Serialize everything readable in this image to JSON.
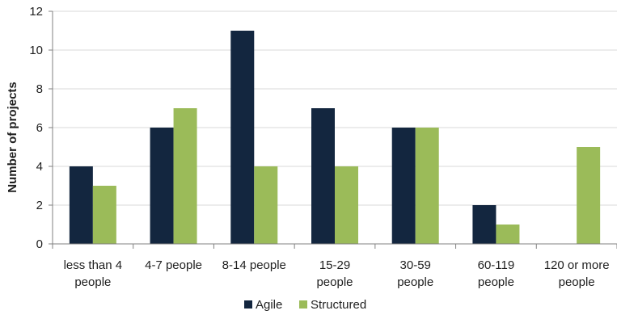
{
  "chart_data": {
    "type": "bar",
    "categories": [
      [
        "less than 4",
        "people"
      ],
      [
        "4-7 people"
      ],
      [
        "8-14 people"
      ],
      [
        "15-29",
        "people"
      ],
      [
        "30-59",
        "people"
      ],
      [
        "60-119",
        "people"
      ],
      [
        "120 or more",
        "people"
      ]
    ],
    "series": [
      {
        "name": "Agile",
        "color": "#13263f",
        "values": [
          4,
          6,
          11,
          7,
          6,
          2,
          0
        ]
      },
      {
        "name": "Structured",
        "color": "#9bbb59",
        "values": [
          3,
          7,
          4,
          4,
          6,
          1,
          5
        ]
      }
    ],
    "title": "",
    "xlabel": "",
    "ylabel": "Number of projects",
    "ylim": [
      0,
      12
    ],
    "yticks": [
      0,
      2,
      4,
      6,
      8,
      10,
      12
    ],
    "grid": true,
    "legend_position": "bottom"
  }
}
